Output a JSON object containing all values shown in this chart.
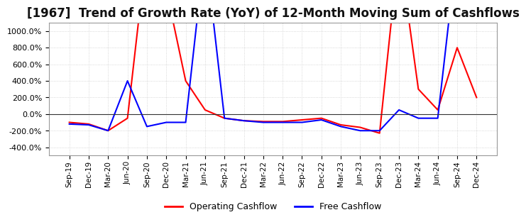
{
  "title": "[1967]  Trend of Growth Rate (YoY) of 12-Month Moving Sum of Cashflows",
  "title_fontsize": 12,
  "ylim": [
    -500,
    1100
  ],
  "yticks": [
    -400,
    -200,
    0,
    200,
    400,
    600,
    800,
    1000
  ],
  "background_color": "#ffffff",
  "grid_color": "#cccccc",
  "legend_labels": [
    "Operating Cashflow",
    "Free Cashflow"
  ],
  "legend_colors": [
    "#ff0000",
    "#0000ff"
  ],
  "x_labels": [
    "Sep-19",
    "Dec-19",
    "Mar-20",
    "Jun-20",
    "Sep-20",
    "Dec-20",
    "Mar-21",
    "Jun-21",
    "Sep-21",
    "Dec-21",
    "Mar-22",
    "Jun-22",
    "Sep-22",
    "Dec-22",
    "Mar-23",
    "Jun-23",
    "Sep-23",
    "Dec-23",
    "Mar-24",
    "Jun-24",
    "Sep-24",
    "Dec-24"
  ],
  "operating_cashflow": [
    -100,
    -120,
    -200,
    -50,
    2000,
    1500,
    400,
    50,
    -50,
    -80,
    -90,
    -90,
    -70,
    -50,
    -130,
    -160,
    -230,
    2000,
    300,
    50,
    800,
    200
  ],
  "free_cashflow": [
    -120,
    -130,
    -200,
    400,
    -150,
    -100,
    -100,
    2000,
    -50,
    -80,
    -100,
    -100,
    -100,
    -70,
    -150,
    -200,
    -200,
    50,
    -50,
    -50,
    2000,
    null
  ]
}
